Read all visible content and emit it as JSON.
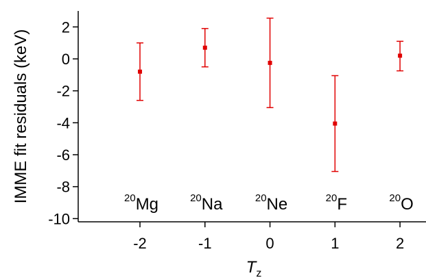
{
  "chart_data": {
    "type": "scatter",
    "title": "",
    "xlabel": "T",
    "xlabel_subscript": "z",
    "ylabel": "IMME fit residuals (keV)",
    "xlim": [
      -2.95,
      2.4
    ],
    "ylim": [
      -10.2,
      3
    ],
    "x_ticks": [
      "-2",
      "-1",
      "0",
      "1",
      "2"
    ],
    "y_ticks": [
      "-10",
      "-8",
      "-6",
      "-4",
      "-2",
      "0",
      "2"
    ],
    "grid": false,
    "marker_color": "#e00000",
    "points": [
      {
        "x": -2,
        "y": -0.8,
        "err_low": -2.6,
        "err_high": 1.0,
        "mass": "20",
        "element": "Mg"
      },
      {
        "x": -1,
        "y": 0.7,
        "err_low": -0.5,
        "err_high": 1.9,
        "mass": "20",
        "element": "Na"
      },
      {
        "x": 0,
        "y": -0.25,
        "err_low": -3.05,
        "err_high": 2.55,
        "mass": "20",
        "element": "Ne"
      },
      {
        "x": 1,
        "y": -4.05,
        "err_low": -7.05,
        "err_high": -1.05,
        "mass": "20",
        "element": "F"
      },
      {
        "x": 2,
        "y": 0.2,
        "err_low": -0.75,
        "err_high": 1.1,
        "mass": "20",
        "element": "O"
      }
    ]
  }
}
